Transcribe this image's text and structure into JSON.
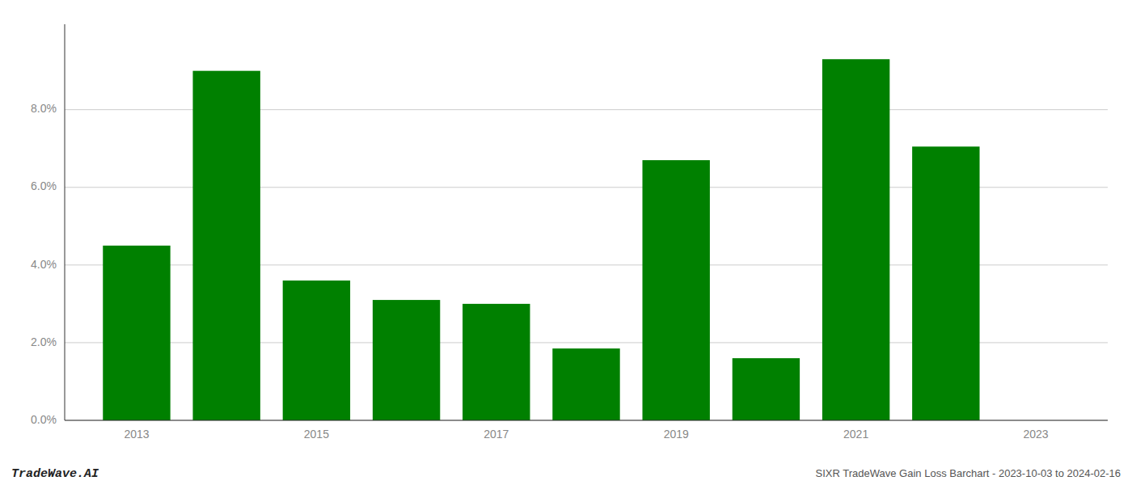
{
  "chart_data": {
    "type": "bar",
    "x": [
      2013,
      2014,
      2015,
      2016,
      2017,
      2018,
      2019,
      2020,
      2021,
      2022,
      2023
    ],
    "values": [
      0.045,
      0.09,
      0.036,
      0.031,
      0.03,
      0.0185,
      0.067,
      0.016,
      0.093,
      0.0705,
      0.0
    ],
    "color": "#008000",
    "xlim": [
      2012.2,
      2023.8
    ],
    "xticks": [
      2013,
      2015,
      2017,
      2019,
      2021,
      2023
    ],
    "ylim": [
      0,
      0.102
    ],
    "yticks": [
      {
        "value": 0.0,
        "label": "0.0%"
      },
      {
        "value": 0.02,
        "label": "2.0%"
      },
      {
        "value": 0.04,
        "label": "4.0%"
      },
      {
        "value": 0.06,
        "label": "6.0%"
      },
      {
        "value": 0.08,
        "label": "8.0%"
      }
    ],
    "grid": true,
    "annotations": [
      "TradeWave.AI",
      "SIXR TradeWave Gain Loss Barchart - 2023-10-03 to 2024-02-16"
    ]
  }
}
